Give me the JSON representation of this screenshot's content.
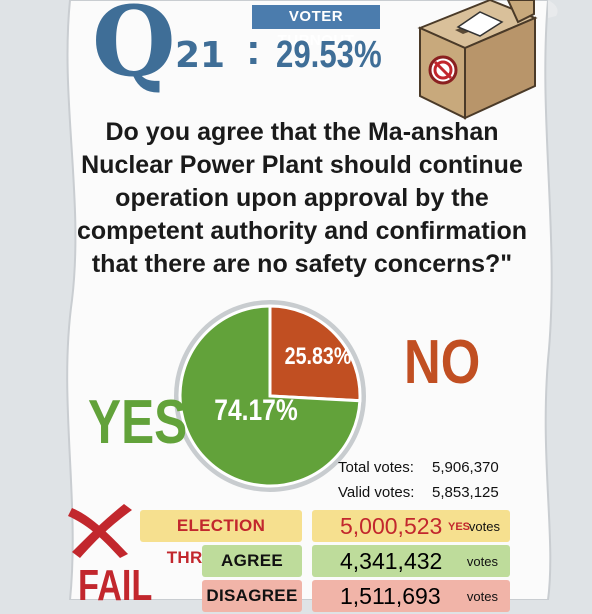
{
  "question": {
    "letter": "Q",
    "number": "21",
    "colon": ":",
    "text": "Do you agree that the Ma-anshan Nuclear Power Plant should continue operation upon approval by the competent authority and confirmation that there are no safety concerns?\""
  },
  "turnout": {
    "label": "VOTER TURNOUT",
    "value": "29.53%"
  },
  "chart_data": {
    "type": "pie",
    "slices": [
      {
        "name": "YES",
        "label": "74.17%",
        "value": 74.17,
        "color": "#62a23a"
      },
      {
        "name": "NO",
        "label": "25.83%",
        "value": 25.83,
        "color": "#c14f22"
      }
    ]
  },
  "totals": {
    "total_label": "Total votes:",
    "total_value": "5,906,370",
    "valid_label": "Valid votes:",
    "valid_value": "5,853,125"
  },
  "results": {
    "threshold_label": "ELECTION THRESHOLD",
    "threshold_value": "5,000,523",
    "threshold_yes": "YES",
    "threshold_votes": "votes",
    "agree_label": "AGREE",
    "agree_value": "4,341,432",
    "agree_votes": "votes",
    "disagree_label": "DISAGREE",
    "disagree_value": "1,511,693",
    "disagree_votes": "votes",
    "outcome": "FAIL"
  },
  "colors": {
    "background": "#dfe3e6",
    "paper": "#fbfbfb",
    "accent_blue": "#3f6e97",
    "yes_green": "#62a23a",
    "no_red": "#c14f22",
    "fail_red": "#c2272d"
  }
}
